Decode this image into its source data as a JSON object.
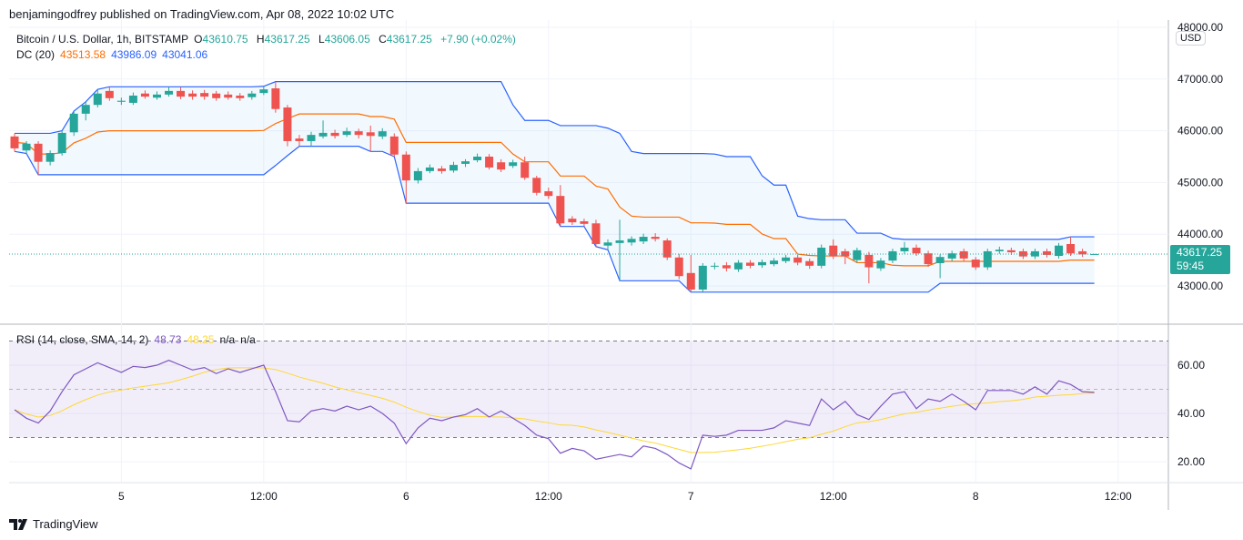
{
  "published": "benjamingodfrey published on TradingView.com, Apr 08, 2022 10:02 UTC",
  "symbol": {
    "title": "Bitcoin / U.S. Dollar, 1h, BITSTAMP",
    "o_label": "O",
    "o": "43610.75",
    "h_label": "H",
    "h": "43617.25",
    "l_label": "L",
    "l": "43606.05",
    "c_label": "C",
    "c": "43617.25",
    "change": "+7.90 (+0.02%)"
  },
  "dc_legend": {
    "name": "DC (20)",
    "basis": "43513.58",
    "upper": "43986.09",
    "lower": "43041.06"
  },
  "rsi_legend": {
    "name": "RSI (14, close, SMA, 14, 2)",
    "rsi": "48.73",
    "sma": "48.25",
    "na1": "n/a",
    "na2": "n/a"
  },
  "currency": "USD",
  "last_price": {
    "value": "43617.25",
    "countdown": "59:45"
  },
  "footer": {
    "brand": "TradingView"
  },
  "colors": {
    "up": "#26a69a",
    "down": "#ef5350",
    "dc_band": "#2962ff",
    "dc_basis": "#ff6d00",
    "rsi": "#7e57c2",
    "rsi_sma": "#fdd835",
    "rsi_bg": "#7e57c2"
  },
  "chart_data": [
    {
      "type": "candlestick",
      "price_ticks": [
        "48000.00",
        "47000.00",
        "46000.00",
        "45000.00",
        "44000.00",
        "43000.00"
      ],
      "ylim": [
        42280,
        48000
      ],
      "x_ticks": [
        {
          "label": "5",
          "at_candle": 9
        },
        {
          "label": "12:00",
          "at_candle": 21
        },
        {
          "label": "6",
          "at_candle": 33
        },
        {
          "label": "12:00",
          "at_candle": 45
        },
        {
          "label": "7",
          "at_candle": 57
        },
        {
          "label": "12:00",
          "at_candle": 69
        },
        {
          "label": "8",
          "at_candle": 81
        },
        {
          "label": "12:00",
          "at_candle": 93
        }
      ],
      "candles_ohlc": [
        [
          45890,
          45950,
          45600,
          45660
        ],
        [
          45620,
          45800,
          45560,
          45750
        ],
        [
          45750,
          45800,
          45150,
          45400
        ],
        [
          45400,
          45620,
          45330,
          45570
        ],
        [
          45570,
          46000,
          45520,
          45960
        ],
        [
          45970,
          46380,
          45900,
          46330
        ],
        [
          46330,
          46560,
          46200,
          46500
        ],
        [
          46500,
          46800,
          46450,
          46720
        ],
        [
          46770,
          46850,
          46580,
          46630
        ],
        [
          46560,
          46640,
          46500,
          46580
        ],
        [
          46540,
          46740,
          46500,
          46680
        ],
        [
          46720,
          46780,
          46620,
          46660
        ],
        [
          46640,
          46760,
          46600,
          46700
        ],
        [
          46700,
          46850,
          46660,
          46770
        ],
        [
          46770,
          46840,
          46610,
          46660
        ],
        [
          46720,
          46780,
          46600,
          46660
        ],
        [
          46730,
          46790,
          46600,
          46660
        ],
        [
          46720,
          46770,
          46580,
          46630
        ],
        [
          46700,
          46760,
          46600,
          46640
        ],
        [
          46680,
          46730,
          46580,
          46630
        ],
        [
          46650,
          46770,
          46600,
          46720
        ],
        [
          46730,
          46860,
          46690,
          46800
        ],
        [
          46820,
          46950,
          46350,
          46420
        ],
        [
          46450,
          46500,
          45700,
          45800
        ],
        [
          45850,
          45920,
          45700,
          45800
        ],
        [
          45800,
          45980,
          45700,
          45920
        ],
        [
          45890,
          46200,
          45850,
          45960
        ],
        [
          45960,
          46020,
          45850,
          45900
        ],
        [
          45920,
          46060,
          45880,
          45990
        ],
        [
          45990,
          46040,
          45850,
          45920
        ],
        [
          45970,
          46100,
          45600,
          45900
        ],
        [
          45890,
          46050,
          45840,
          45990
        ],
        [
          45890,
          45950,
          45500,
          45540
        ],
        [
          45540,
          45600,
          44600,
          45040
        ],
        [
          45040,
          45280,
          44980,
          45220
        ],
        [
          45220,
          45350,
          45180,
          45290
        ],
        [
          45270,
          45320,
          45170,
          45220
        ],
        [
          45230,
          45400,
          45190,
          45340
        ],
        [
          45360,
          45450,
          45300,
          45410
        ],
        [
          45430,
          45560,
          45390,
          45500
        ],
        [
          45500,
          45550,
          45250,
          45290
        ],
        [
          45390,
          45450,
          45200,
          45250
        ],
        [
          45320,
          45440,
          45280,
          45390
        ],
        [
          45390,
          45500,
          45050,
          45090
        ],
        [
          45090,
          45130,
          44750,
          44800
        ],
        [
          44830,
          44900,
          44680,
          44740
        ],
        [
          44740,
          44950,
          44150,
          44210
        ],
        [
          44300,
          44350,
          44180,
          44230
        ],
        [
          44250,
          44300,
          44150,
          44200
        ],
        [
          44210,
          44280,
          43760,
          43810
        ],
        [
          43780,
          43900,
          43700,
          43840
        ],
        [
          43830,
          44280,
          43100,
          43880
        ],
        [
          43840,
          43960,
          43780,
          43910
        ],
        [
          43860,
          44010,
          43810,
          43950
        ],
        [
          43950,
          44020,
          43860,
          43910
        ],
        [
          43880,
          43920,
          43500,
          43550
        ],
        [
          43550,
          43620,
          43130,
          43190
        ],
        [
          43250,
          43600,
          42880,
          42930
        ],
        [
          42930,
          43440,
          42880,
          43390
        ],
        [
          43380,
          43450,
          43320,
          43390
        ],
        [
          43400,
          43460,
          43280,
          43340
        ],
        [
          43320,
          43500,
          43270,
          43450
        ],
        [
          43450,
          43500,
          43340,
          43390
        ],
        [
          43400,
          43510,
          43350,
          43460
        ],
        [
          43420,
          43540,
          43380,
          43490
        ],
        [
          43480,
          43600,
          43440,
          43550
        ],
        [
          43550,
          43600,
          43400,
          43450
        ],
        [
          43480,
          43530,
          43330,
          43390
        ],
        [
          43390,
          43800,
          43340,
          43740
        ],
        [
          43780,
          43900,
          43520,
          43570
        ],
        [
          43670,
          43720,
          43420,
          43570
        ],
        [
          43500,
          43740,
          43450,
          43690
        ],
        [
          43600,
          43660,
          43050,
          43360
        ],
        [
          43340,
          43540,
          43290,
          43490
        ],
        [
          43490,
          43720,
          43440,
          43670
        ],
        [
          43670,
          43850,
          43620,
          43740
        ],
        [
          43740,
          43800,
          43580,
          43630
        ],
        [
          43630,
          43680,
          43370,
          43420
        ],
        [
          43440,
          43610,
          43150,
          43560
        ],
        [
          43530,
          43680,
          43480,
          43630
        ],
        [
          43670,
          43720,
          43480,
          43530
        ],
        [
          43510,
          43560,
          43310,
          43360
        ],
        [
          43360,
          43720,
          43310,
          43670
        ],
        [
          43670,
          43760,
          43620,
          43700
        ],
        [
          43690,
          43740,
          43600,
          43650
        ],
        [
          43670,
          43720,
          43520,
          43570
        ],
        [
          43570,
          43720,
          43520,
          43670
        ],
        [
          43670,
          43720,
          43550,
          43600
        ],
        [
          43580,
          43830,
          43530,
          43780
        ],
        [
          43810,
          43950,
          43580,
          43630
        ],
        [
          43670,
          43720,
          43560,
          43610
        ],
        [
          43610.75,
          43617.25,
          43606.05,
          43617.25
        ]
      ],
      "overlay": "Donchian Channels (20)"
    },
    {
      "type": "line",
      "ylim": [
        10,
        78
      ],
      "y_ticks": [
        "60.00",
        "40.00",
        "20.00"
      ],
      "bands": [
        70,
        50,
        30
      ],
      "rsi": [
        41.5,
        38,
        36,
        41,
        49,
        56,
        58.5,
        61,
        59,
        57,
        59.5,
        59,
        60,
        62,
        60,
        58,
        59,
        56.5,
        58.5,
        57,
        58.5,
        60,
        49,
        37,
        36.5,
        41,
        42,
        41,
        43,
        41.5,
        43,
        40,
        36,
        27.5,
        34,
        38,
        37,
        38.5,
        39.5,
        42,
        38.5,
        41,
        38,
        35,
        31,
        29.5,
        23.5,
        25.5,
        24.5,
        21,
        22,
        23,
        22,
        26.5,
        25.5,
        23,
        19.5,
        17,
        31,
        30.5,
        31,
        33,
        33,
        33,
        34,
        37,
        36,
        35,
        46,
        41.5,
        45,
        39.5,
        37.5,
        43,
        48,
        49,
        42,
        46,
        45,
        48,
        45,
        41.5,
        49.5,
        49.5,
        49.5,
        48,
        51,
        48,
        53.5,
        52,
        49,
        48.73
      ],
      "sma_length": 14
    }
  ]
}
